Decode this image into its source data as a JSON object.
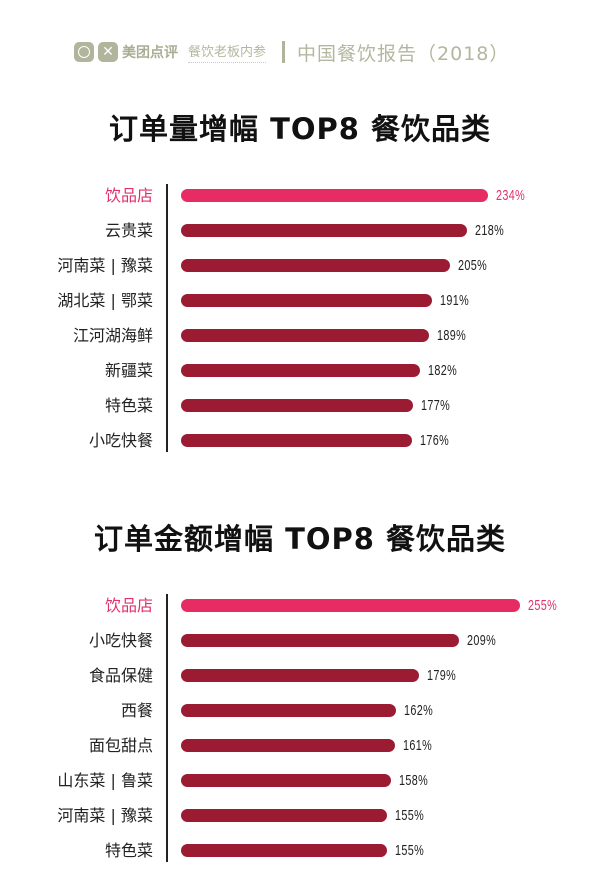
{
  "header": {
    "brand_meituan": "美团点评",
    "brand_canyin": "餐饮老板内参",
    "report_title": "中国餐饮报告（2018）"
  },
  "colors": {
    "highlight": "#e62c63",
    "bar": "#9b1b32",
    "header_gray": "#b3b79f"
  },
  "chart_data": [
    {
      "type": "bar",
      "orientation": "horizontal",
      "title": "订单量增幅 TOP8 餐饮品类",
      "categories": [
        "饮品店",
        "云贵菜",
        "河南菜 | 豫菜",
        "湖北菜 | 鄂菜",
        "江河湖海鲜",
        "新疆菜",
        "特色菜",
        "小吃快餐"
      ],
      "values": [
        234,
        218,
        205,
        191,
        189,
        182,
        177,
        176
      ],
      "value_labels": [
        "234%",
        "218%",
        "205%",
        "191%",
        "189%",
        "182%",
        "177%",
        "176%"
      ],
      "highlight_index": 0,
      "xlabel": "",
      "ylabel": "",
      "grid": false,
      "legend": "none"
    },
    {
      "type": "bar",
      "orientation": "horizontal",
      "title": "订单金额增幅 TOP8 餐饮品类",
      "categories": [
        "饮品店",
        "小吃快餐",
        "食品保健",
        "西餐",
        "面包甜点",
        "山东菜 | 鲁菜",
        "河南菜 | 豫菜",
        "特色菜"
      ],
      "values": [
        255,
        209,
        179,
        162,
        161,
        158,
        155,
        155
      ],
      "value_labels": [
        "255%",
        "209%",
        "179%",
        "162%",
        "161%",
        "158%",
        "155%",
        "155%"
      ],
      "highlight_index": 0,
      "xlabel": "",
      "ylabel": "",
      "grid": false,
      "legend": "none"
    }
  ]
}
